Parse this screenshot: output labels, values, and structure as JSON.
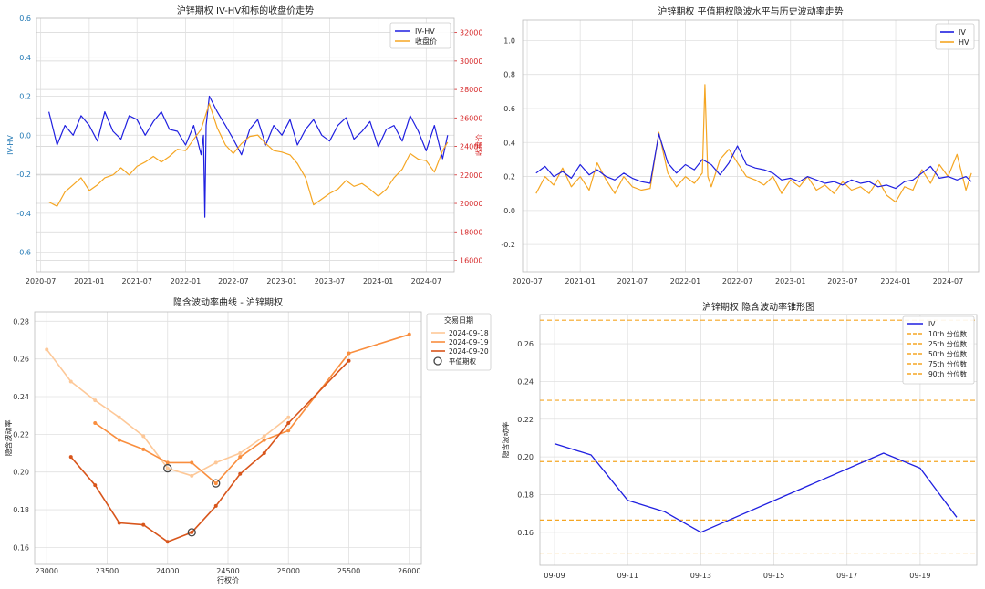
{
  "chart_data": [
    {
      "id": "p1",
      "type": "line",
      "title": "沪锌期权 IV-HV和标的收盘价走势",
      "ylabel": "IV-HV",
      "ylabel_right": "收盘价",
      "x_ticks": [
        "2020-07",
        "2021-01",
        "2021-07",
        "2022-01",
        "2022-07",
        "2023-01",
        "2023-07",
        "2024-01",
        "2024-07"
      ],
      "xlim": [
        "2020-06-15",
        "2024-10-15"
      ],
      "ylim": [
        -0.7,
        0.6
      ],
      "y_ticks": [
        "0.6",
        "0.4",
        "0.2",
        "0.0",
        "-0.2",
        "-0.4",
        "-0.6"
      ],
      "ylim_right": [
        15200,
        33000
      ],
      "y_ticks_right": [
        "16000",
        "18000",
        "20000",
        "22000",
        "24000",
        "26000",
        "28000",
        "30000",
        "32000"
      ],
      "grid": true,
      "legend_position": "top-right",
      "colors": {
        "IV-HV": "#1f1fe0",
        "收盘价": "#f5a623",
        "left_axis": "#1f77b4",
        "right_axis": "#d62728"
      },
      "series": [
        {
          "name": "IV-HV",
          "axis": "left",
          "x": [
            "2020-08-01",
            "2020-09-01",
            "2020-10-01",
            "2020-11-01",
            "2020-12-01",
            "2021-01-01",
            "2021-02-01",
            "2021-03-01",
            "2021-04-01",
            "2021-05-01",
            "2021-06-01",
            "2021-07-01",
            "2021-08-01",
            "2021-09-01",
            "2021-10-01",
            "2021-11-01",
            "2021-12-01",
            "2022-01-01",
            "2022-02-01",
            "2022-03-01",
            "2022-03-10",
            "2022-03-15",
            "2022-03-20",
            "2022-04-01",
            "2022-05-01",
            "2022-06-01",
            "2022-07-01",
            "2022-08-01",
            "2022-09-01",
            "2022-10-01",
            "2022-11-01",
            "2022-12-01",
            "2023-01-01",
            "2023-02-01",
            "2023-03-01",
            "2023-04-01",
            "2023-05-01",
            "2023-06-01",
            "2023-07-01",
            "2023-08-01",
            "2023-09-01",
            "2023-10-01",
            "2023-11-01",
            "2023-12-01",
            "2024-01-01",
            "2024-02-01",
            "2024-03-01",
            "2024-04-01",
            "2024-05-01",
            "2024-06-01",
            "2024-07-01",
            "2024-08-01",
            "2024-09-01",
            "2024-09-20"
          ],
          "values": [
            0.12,
            -0.05,
            0.05,
            0.0,
            0.1,
            0.05,
            -0.03,
            0.12,
            0.02,
            -0.02,
            0.1,
            0.08,
            0.0,
            0.07,
            0.12,
            0.03,
            0.02,
            -0.05,
            0.05,
            -0.1,
            0.0,
            -0.42,
            0.05,
            0.2,
            0.12,
            0.05,
            -0.02,
            -0.1,
            0.03,
            0.08,
            -0.05,
            0.05,
            0.0,
            0.08,
            -0.05,
            0.03,
            0.08,
            0.0,
            -0.03,
            0.05,
            0.09,
            -0.02,
            0.02,
            0.07,
            -0.06,
            0.03,
            0.05,
            -0.03,
            0.1,
            0.02,
            -0.08,
            0.05,
            -0.12,
            0.0
          ]
        },
        {
          "name": "收盘价",
          "axis": "right",
          "x": [
            "2020-08-01",
            "2020-09-01",
            "2020-10-01",
            "2020-11-01",
            "2020-12-01",
            "2021-01-01",
            "2021-02-01",
            "2021-03-01",
            "2021-04-01",
            "2021-05-01",
            "2021-06-01",
            "2021-07-01",
            "2021-08-01",
            "2021-09-01",
            "2021-10-01",
            "2021-11-01",
            "2021-12-01",
            "2022-01-01",
            "2022-02-01",
            "2022-03-01",
            "2022-04-01",
            "2022-05-01",
            "2022-06-01",
            "2022-07-01",
            "2022-08-01",
            "2022-09-01",
            "2022-10-01",
            "2022-11-01",
            "2022-12-01",
            "2023-01-01",
            "2023-02-01",
            "2023-03-01",
            "2023-04-01",
            "2023-05-01",
            "2023-06-01",
            "2023-07-01",
            "2023-08-01",
            "2023-09-01",
            "2023-10-01",
            "2023-11-01",
            "2023-12-01",
            "2024-01-01",
            "2024-02-01",
            "2024-03-01",
            "2024-04-01",
            "2024-05-01",
            "2024-06-01",
            "2024-07-01",
            "2024-08-01",
            "2024-09-01",
            "2024-09-20"
          ],
          "values": [
            20100,
            19800,
            20800,
            21300,
            21800,
            20900,
            21300,
            21800,
            22000,
            22500,
            22000,
            22600,
            22900,
            23300,
            22900,
            23300,
            23800,
            23700,
            24500,
            25200,
            27000,
            25300,
            24100,
            23500,
            24200,
            24700,
            24800,
            24200,
            23700,
            23600,
            23400,
            22800,
            21800,
            19900,
            20300,
            20700,
            21000,
            21600,
            21200,
            21400,
            21000,
            20500,
            21000,
            21800,
            22400,
            23500,
            23100,
            23000,
            22200,
            23700,
            24300
          ]
        }
      ]
    },
    {
      "id": "p2",
      "type": "line",
      "title": "沪锌期权 平值期权隐波水平与历史波动率走势",
      "x_ticks": [
        "2020-07",
        "2021-01",
        "2021-07",
        "2022-01",
        "2022-07",
        "2023-01",
        "2023-07",
        "2024-01",
        "2024-07"
      ],
      "xlim": [
        "2020-06-15",
        "2024-10-15"
      ],
      "ylim": [
        -0.36,
        1.12
      ],
      "y_ticks": [
        "1.0",
        "0.8",
        "0.6",
        "0.4",
        "0.2",
        "0.0",
        "-0.2"
      ],
      "grid": true,
      "legend_position": "top-right",
      "colors": {
        "IV": "#1f1fe0",
        "HV": "#f5a623"
      },
      "series": [
        {
          "name": "IV",
          "x": [
            "2020-08-01",
            "2020-09-01",
            "2020-10-01",
            "2020-11-01",
            "2020-12-01",
            "2021-01-01",
            "2021-02-01",
            "2021-03-01",
            "2021-04-01",
            "2021-05-01",
            "2021-06-01",
            "2021-07-01",
            "2021-08-01",
            "2021-09-01",
            "2021-10-01",
            "2021-11-01",
            "2021-12-01",
            "2022-01-01",
            "2022-02-01",
            "2022-03-01",
            "2022-04-01",
            "2022-05-01",
            "2022-06-01",
            "2022-07-01",
            "2022-08-01",
            "2022-09-01",
            "2022-10-01",
            "2022-11-01",
            "2022-12-01",
            "2023-01-01",
            "2023-02-01",
            "2023-03-01",
            "2023-04-01",
            "2023-05-01",
            "2023-06-01",
            "2023-07-01",
            "2023-08-01",
            "2023-09-01",
            "2023-10-01",
            "2023-11-01",
            "2023-12-01",
            "2024-01-01",
            "2024-02-01",
            "2024-03-01",
            "2024-04-01",
            "2024-05-01",
            "2024-06-01",
            "2024-07-01",
            "2024-08-01",
            "2024-09-01",
            "2024-09-20"
          ],
          "values": [
            0.22,
            0.26,
            0.2,
            0.23,
            0.19,
            0.27,
            0.21,
            0.24,
            0.2,
            0.18,
            0.22,
            0.19,
            0.17,
            0.16,
            0.45,
            0.28,
            0.22,
            0.27,
            0.24,
            0.3,
            0.27,
            0.21,
            0.28,
            0.38,
            0.27,
            0.25,
            0.24,
            0.22,
            0.18,
            0.19,
            0.17,
            0.2,
            0.18,
            0.16,
            0.17,
            0.15,
            0.18,
            0.16,
            0.17,
            0.14,
            0.15,
            0.13,
            0.17,
            0.18,
            0.22,
            0.26,
            0.19,
            0.2,
            0.18,
            0.2,
            0.17
          ]
        },
        {
          "name": "HV",
          "x": [
            "2020-08-01",
            "2020-09-01",
            "2020-10-01",
            "2020-11-01",
            "2020-12-01",
            "2021-01-01",
            "2021-02-01",
            "2021-03-01",
            "2021-04-01",
            "2021-05-01",
            "2021-06-01",
            "2021-07-01",
            "2021-08-01",
            "2021-09-01",
            "2021-10-01",
            "2021-11-01",
            "2021-12-01",
            "2022-01-01",
            "2022-02-01",
            "2022-03-01",
            "2022-03-10",
            "2022-03-20",
            "2022-04-01",
            "2022-05-01",
            "2022-06-01",
            "2022-07-01",
            "2022-08-01",
            "2022-09-01",
            "2022-10-01",
            "2022-11-01",
            "2022-12-01",
            "2023-01-01",
            "2023-02-01",
            "2023-03-01",
            "2023-04-01",
            "2023-05-01",
            "2023-06-01",
            "2023-07-01",
            "2023-08-01",
            "2023-09-01",
            "2023-10-01",
            "2023-11-01",
            "2023-12-01",
            "2024-01-01",
            "2024-02-01",
            "2024-03-01",
            "2024-04-01",
            "2024-05-01",
            "2024-06-01",
            "2024-07-01",
            "2024-08-01",
            "2024-09-01",
            "2024-09-20"
          ],
          "values": [
            0.1,
            0.2,
            0.15,
            0.25,
            0.14,
            0.2,
            0.12,
            0.28,
            0.18,
            0.1,
            0.2,
            0.14,
            0.12,
            0.13,
            0.46,
            0.22,
            0.14,
            0.2,
            0.16,
            0.22,
            0.74,
            0.2,
            0.14,
            0.3,
            0.36,
            0.28,
            0.2,
            0.18,
            0.15,
            0.2,
            0.1,
            0.18,
            0.14,
            0.2,
            0.12,
            0.15,
            0.1,
            0.17,
            0.12,
            0.14,
            0.1,
            0.18,
            0.09,
            0.05,
            0.14,
            0.12,
            0.24,
            0.16,
            0.27,
            0.2,
            0.33,
            0.12,
            0.22
          ]
        }
      ]
    },
    {
      "id": "p3",
      "type": "line",
      "title": "隐含波动率曲线 - 沪锌期权",
      "xlabel": "行权价",
      "ylabel": "隐含波动率",
      "xlim": [
        22900,
        26100
      ],
      "ylim": [
        0.151,
        0.285
      ],
      "x_ticks": [
        "23000",
        "23500",
        "24000",
        "24500",
        "25000",
        "25500",
        "26000"
      ],
      "y_ticks": [
        "0.28",
        "0.26",
        "0.24",
        "0.22",
        "0.20",
        "0.18",
        "0.16"
      ],
      "grid": true,
      "legend_title": "交易日期",
      "legend_position": "top-right",
      "colors": {
        "2024-09-18": "#fdc898",
        "2024-09-19": "#f98e3e",
        "2024-09-20": "#d8551b",
        "atm_marker": "#444444"
      },
      "series": [
        {
          "name": "2024-09-18",
          "x": [
            23000,
            23200,
            23400,
            23600,
            23800,
            24000,
            24200,
            24400,
            24600,
            24800,
            25000
          ],
          "values": [
            0.265,
            0.248,
            0.238,
            0.229,
            0.219,
            0.202,
            0.198,
            0.205,
            0.21,
            0.219,
            0.229
          ]
        },
        {
          "name": "2024-09-19",
          "x": [
            23400,
            23600,
            23800,
            24000,
            24200,
            24400,
            24600,
            24800,
            25000,
            25500,
            26000
          ],
          "values": [
            0.226,
            0.217,
            0.212,
            0.205,
            0.205,
            0.194,
            0.208,
            0.217,
            0.222,
            0.263,
            0.273
          ]
        },
        {
          "name": "2024-09-20",
          "x": [
            23200,
            23400,
            23600,
            23800,
            24000,
            24200,
            24400,
            24600,
            24800,
            25000,
            25500
          ],
          "values": [
            0.208,
            0.193,
            0.173,
            0.172,
            0.163,
            0.168,
            0.182,
            0.199,
            0.21,
            0.226,
            0.259
          ]
        }
      ],
      "atm_label": "平值期权",
      "atm_points": [
        {
          "x": 24000,
          "y": 0.202
        },
        {
          "x": 24400,
          "y": 0.194
        },
        {
          "x": 24200,
          "y": 0.168
        }
      ]
    },
    {
      "id": "p4",
      "type": "line",
      "title": "沪锌期权 隐含波动率锥形图",
      "ylabel": "隐含波动率",
      "xlim": [
        "09-09",
        "09-20"
      ],
      "ylim": [
        0.1425,
        0.2755
      ],
      "x_ticks": [
        "09-09",
        "09-11",
        "09-13",
        "09-15",
        "09-17",
        "09-19"
      ],
      "y_ticks": [
        "0.26",
        "0.24",
        "0.22",
        "0.20",
        "0.18",
        "0.16"
      ],
      "grid": true,
      "legend_position": "top-right",
      "colors": {
        "IV": "#1f1fe0",
        "percentile": "#f5a623"
      },
      "series": [
        {
          "name": "IV",
          "x": [
            "09-09",
            "09-10",
            "09-11",
            "09-12",
            "09-13",
            "09-18",
            "09-19",
            "09-20"
          ],
          "values": [
            0.207,
            0.201,
            0.177,
            0.171,
            0.16,
            0.202,
            0.194,
            0.168
          ]
        }
      ],
      "percentiles": [
        {
          "name": "10th 分位数",
          "value": 0.149
        },
        {
          "name": "25th 分位数",
          "value": 0.1665
        },
        {
          "name": "50th 分位数",
          "value": 0.1975
        },
        {
          "name": "75th 分位数",
          "value": 0.23
        },
        {
          "name": "90th 分位数",
          "value": 0.2725
        }
      ]
    }
  ]
}
